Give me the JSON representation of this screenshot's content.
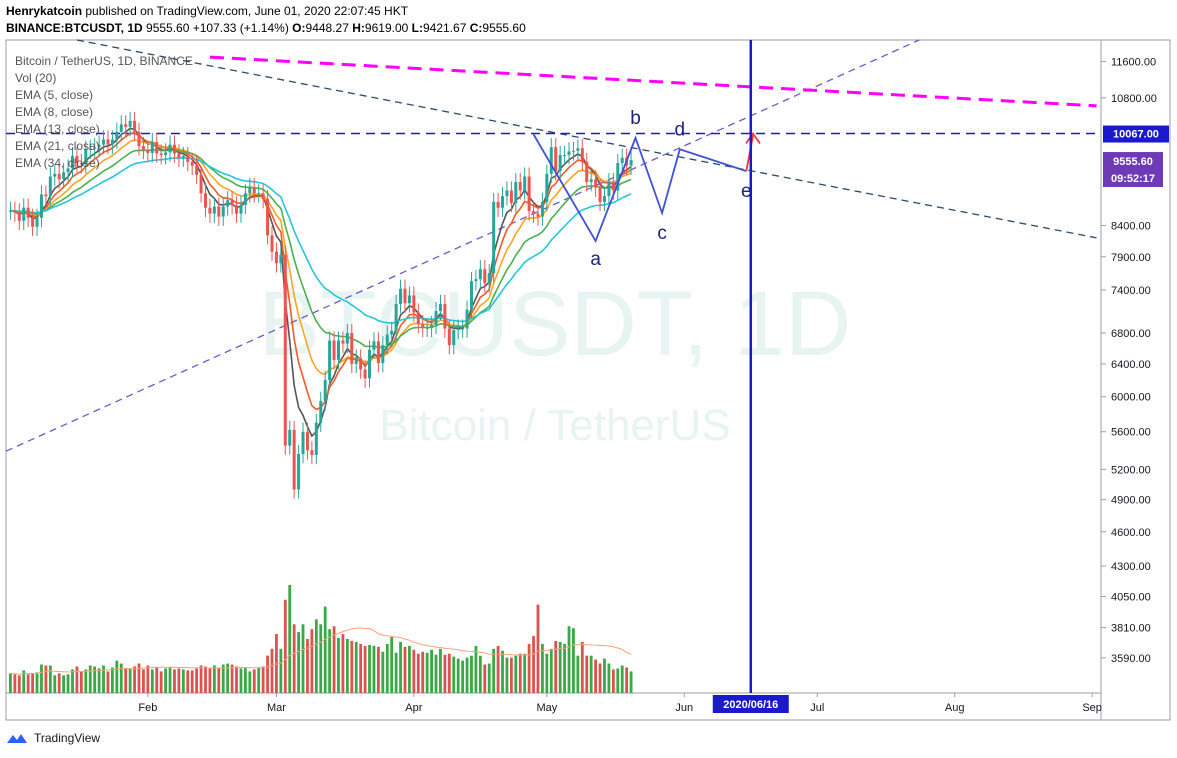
{
  "header": {
    "author": "Henrykatcoin",
    "published": "published on TradingView.com, June 01, 2020 22:07:45 HKT",
    "symbol": "BINANCE:BTCUSDT, 1D",
    "price": "9555.60",
    "change": "+107.33 (+1.14%)",
    "o_label": "O:",
    "open": "9448.27",
    "h_label": "H:",
    "high": "9619.00",
    "l_label": "L:",
    "low": "9421.67",
    "c_label": "C:",
    "close": "9555.60"
  },
  "legend": [
    "Bitcoin / TetherUS, 1D, BINANCE",
    "Vol (20)",
    "EMA (5, close)",
    "EMA (8, close)",
    "EMA (13, close)",
    "EMA (21, close)",
    "EMA (34, close)"
  ],
  "watermark": {
    "line1": "BTCUSDT, 1D",
    "line2": "Bitcoin / TetherUS"
  },
  "footer": {
    "brand": "TradingView"
  },
  "colors": {
    "up": "#26a69a",
    "down": "#ef5350",
    "vol_up": "#3aa844",
    "vol_down": "#d9534f",
    "ema5": "#555555",
    "ema8": "#f05a28",
    "ema13": "#f5a623",
    "ema21": "#4caf50",
    "ema34": "#26c6da",
    "resistance": "#1a1acc",
    "pink": "#ff00ff",
    "wave": "#3f51d8",
    "target": "#e53935"
  },
  "chart_data": {
    "type": "candlestick",
    "x_ticks": [
      "Feb",
      "Mar",
      "Apr",
      "May",
      "Jun",
      "Jul",
      "Aug",
      "Sep"
    ],
    "x_tick_days": [
      31,
      60,
      91,
      121,
      152,
      182,
      213,
      244
    ],
    "y_ticks": [
      3590,
      3810,
      4050,
      4300,
      4600,
      4900,
      5200,
      5600,
      6000,
      6400,
      6800,
      7400,
      7900,
      8400,
      10800,
      11600
    ],
    "y_scale": "log",
    "y_range": [
      3350,
      12100
    ],
    "x_range_days": [
      -1,
      246
    ],
    "last_price": {
      "label": "9555.60",
      "value": 9555.6,
      "countdown": "09:52:17"
    },
    "resistance": {
      "label": "10067.00",
      "value": 10067
    },
    "vertical_date": {
      "label": "2020/06/16",
      "day": 167
    },
    "close": [
      8650,
      8620,
      8480,
      8700,
      8530,
      8380,
      8530,
      8930,
      8900,
      9250,
      9300,
      9200,
      9330,
      9400,
      9630,
      9500,
      9480,
      9750,
      9770,
      9800,
      9850,
      9950,
      9850,
      9950,
      10100,
      10250,
      10200,
      10320,
      10100,
      9820,
      9750,
      9690,
      9900,
      9680,
      9650,
      9700,
      9850,
      9680,
      9600,
      9630,
      9520,
      9450,
      9280,
      8950,
      8700,
      8600,
      8720,
      8550,
      8720,
      8830,
      8740,
      8600,
      8750,
      8950,
      9060,
      8950,
      8950,
      8850,
      8240,
      7980,
      7800,
      7930,
      5450,
      5620,
      5000,
      5360,
      5600,
      5400,
      5350,
      5700,
      5950,
      6200,
      6700,
      6450,
      6700,
      6660,
      6800,
      6400,
      6470,
      6330,
      6220,
      6580,
      6690,
      6410,
      6640,
      6780,
      6830,
      7200,
      7420,
      7210,
      7320,
      7080,
      6920,
      6870,
      6870,
      6910,
      7100,
      7200,
      6860,
      6640,
      6840,
      6860,
      6860,
      7120,
      7530,
      7560,
      7710,
      7500,
      7650,
      8800,
      8700,
      8900,
      9000,
      8780,
      9150,
      9000,
      9250,
      8640,
      8600,
      8550,
      8800,
      9300,
      9800,
      9350,
      9650,
      9650,
      9720,
      9730,
      9780,
      9520,
      9150,
      9200,
      9050,
      8800,
      8900,
      9150,
      9000,
      9500,
      9600,
      9450,
      9555
    ],
    "volume": [
      20,
      19,
      18,
      23,
      19,
      20,
      21,
      29,
      28,
      28,
      18,
      20,
      18,
      19,
      24,
      27,
      22,
      24,
      28,
      27,
      25,
      28,
      22,
      26,
      33,
      30,
      25,
      25,
      27,
      30,
      24,
      28,
      24,
      26,
      22,
      25,
      26,
      24,
      25,
      24,
      23,
      23,
      25,
      28,
      27,
      25,
      28,
      26,
      29,
      30,
      29,
      27,
      25,
      26,
      22,
      24,
      26,
      27,
      38,
      45,
      60,
      45,
      95,
      110,
      70,
      62,
      70,
      55,
      65,
      75,
      70,
      88,
      65,
      68,
      56,
      60,
      55,
      53,
      52,
      50,
      48,
      49,
      48,
      47,
      42,
      50,
      57,
      41,
      52,
      47,
      48,
      44,
      40,
      42,
      41,
      44,
      39,
      45,
      39,
      40,
      37,
      35,
      33,
      36,
      38,
      48,
      38,
      29,
      30,
      45,
      48,
      43,
      36,
      36,
      38,
      40,
      40,
      50,
      58,
      90,
      50,
      40,
      45,
      53,
      52,
      50,
      68,
      66,
      38,
      52,
      38,
      38,
      34,
      30,
      35,
      30,
      24,
      25,
      28,
      26,
      22
    ],
    "ema": [
      {
        "name": "EMA 5",
        "period": 5
      },
      {
        "name": "EMA 8",
        "period": 8
      },
      {
        "name": "EMA 13",
        "period": 13
      },
      {
        "name": "EMA 21",
        "period": 21
      },
      {
        "name": "EMA 34",
        "period": 34
      }
    ],
    "wave_points": [
      {
        "label": "a",
        "day": 132,
        "value": 8150
      },
      {
        "label": "b",
        "day": 141,
        "value": 9980
      },
      {
        "label": "c",
        "day": 147,
        "value": 8610
      },
      {
        "label": "d",
        "day": 151,
        "value": 9760
      },
      {
        "label": "e",
        "day": 166,
        "value": 9350
      }
    ],
    "trendlines": [
      {
        "name": "descending",
        "from": {
          "day": 15,
          "value": 12100
        },
        "to": {
          "day": 245,
          "value": 8200
        }
      },
      {
        "name": "ascending",
        "from": {
          "day": -1,
          "value": 5390
        },
        "to": {
          "day": 205,
          "value": 12100
        }
      },
      {
        "name": "upper",
        "from": {
          "day": 45,
          "value": 11700
        },
        "to": {
          "day": 245,
          "value": 10630
        }
      }
    ]
  }
}
